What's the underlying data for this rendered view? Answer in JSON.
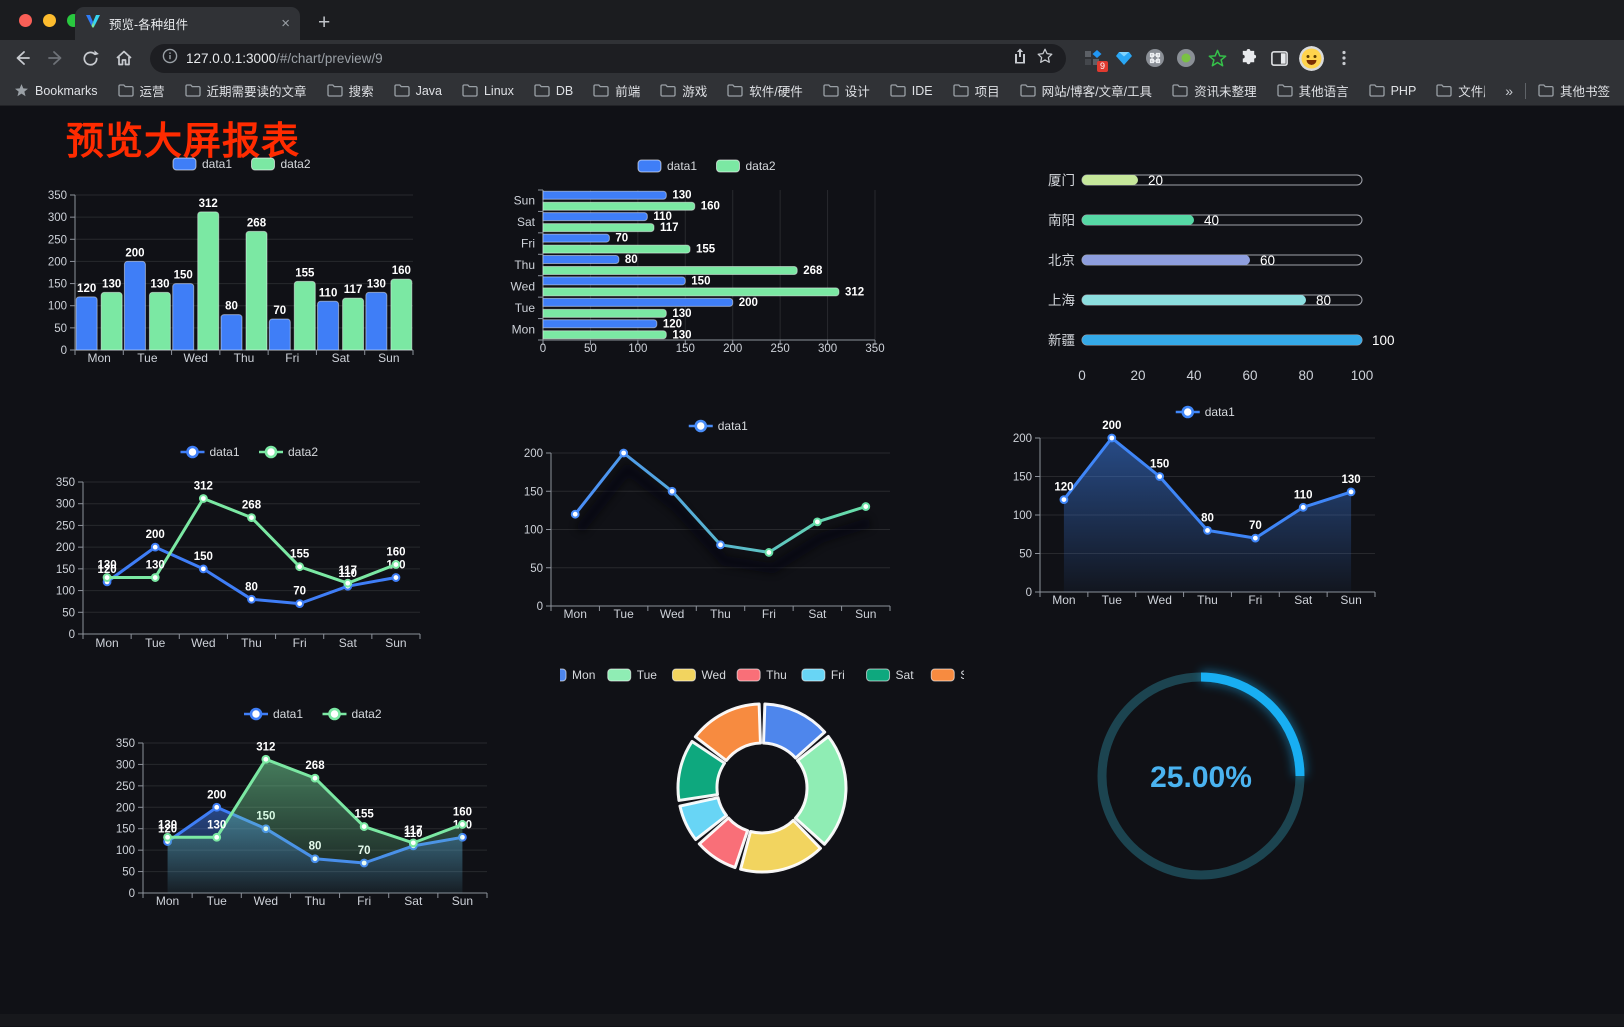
{
  "browser": {
    "tab": {
      "title": "预览-各种组件",
      "close_glyph": "×",
      "new_tab_glyph": "+"
    },
    "address": {
      "host": "127.0.0.1:3000",
      "path": "/#/chart/preview/9"
    },
    "bookmarks_label": "Bookmarks",
    "bookmarks": [
      "运营",
      "近期需要读的文章",
      "搜索",
      "Java",
      "Linux",
      "DB",
      "前端",
      "游戏",
      "软件/硬件",
      "设计",
      "IDE",
      "项目",
      "网站/博客/文章/工具",
      "资讯未整理",
      "其他语言",
      "PHP",
      "文件服务器"
    ],
    "bookmarks_overflow_glyph": "»",
    "other_bookmarks": "其他书签",
    "extension_badge": "9"
  },
  "page": {
    "title": "预览大屏报表",
    "title_color": "#FF2B00",
    "background": "#101116"
  },
  "chart_data": [
    {
      "id": "bar-vertical",
      "type": "bar",
      "categories": [
        "Mon",
        "Tue",
        "Wed",
        "Thu",
        "Fri",
        "Sat",
        "Sun"
      ],
      "series": [
        {
          "name": "data1",
          "color": "#3F7EF7",
          "values": [
            120,
            200,
            150,
            80,
            70,
            110,
            130
          ]
        },
        {
          "name": "data2",
          "color": "#7BE8A3",
          "values": [
            130,
            130,
            312,
            268,
            155,
            117,
            160
          ]
        }
      ],
      "ylim": [
        0,
        350
      ],
      "ytick_step": 50,
      "legend_position": "top",
      "grid": true,
      "value_labels": true
    },
    {
      "id": "bar-horizontal",
      "type": "hbar",
      "categories": [
        "Mon",
        "Tue",
        "Wed",
        "Thu",
        "Fri",
        "Sat",
        "Sun"
      ],
      "categories_order": "bottom-to-top",
      "series": [
        {
          "name": "data1",
          "color": "#3F7EF7",
          "values": [
            120,
            200,
            150,
            80,
            70,
            110,
            130
          ]
        },
        {
          "name": "data2",
          "color": "#7BE8A3",
          "values": [
            130,
            130,
            312,
            268,
            155,
            117,
            160
          ]
        }
      ],
      "xlim": [
        0,
        350
      ],
      "xtick_step": 50,
      "legend_position": "top",
      "grid": true,
      "value_labels": true
    },
    {
      "id": "city-progress",
      "type": "progress",
      "items": [
        {
          "label": "厦门",
          "value": 20,
          "color": "#C6E79B"
        },
        {
          "label": "南阳",
          "value": 40,
          "color": "#56D8A5"
        },
        {
          "label": "北京",
          "value": 60,
          "color": "#8E9EDE"
        },
        {
          "label": "上海",
          "value": 80,
          "color": "#8CDEDF"
        },
        {
          "label": "新疆",
          "value": 100,
          "color": "#35AAE8"
        }
      ],
      "xlim": [
        0,
        100
      ],
      "xticks": [
        0,
        20,
        40,
        60,
        80,
        100
      ],
      "value_labels": true
    },
    {
      "id": "line-two-series",
      "type": "line",
      "categories": [
        "Mon",
        "Tue",
        "Wed",
        "Thu",
        "Fri",
        "Sat",
        "Sun"
      ],
      "series": [
        {
          "name": "data1",
          "color": "#3F7EF7",
          "values": [
            120,
            200,
            150,
            80,
            70,
            110,
            130
          ]
        },
        {
          "name": "data2",
          "color": "#7BE8A3",
          "values": [
            130,
            130,
            312,
            268,
            155,
            117,
            160
          ]
        }
      ],
      "ylim": [
        0,
        350
      ],
      "ytick_step": 50,
      "legend_position": "top",
      "value_labels": true
    },
    {
      "id": "line-gradient",
      "type": "line",
      "categories": [
        "Mon",
        "Tue",
        "Wed",
        "Thu",
        "Fri",
        "Sat",
        "Sun"
      ],
      "series": [
        {
          "name": "data1",
          "color": "#4A8DF8",
          "color_end": "#68E0A7",
          "shadow": true,
          "values": [
            120,
            200,
            150,
            80,
            70,
            110,
            130
          ]
        }
      ],
      "ylim": [
        0,
        200
      ],
      "ytick_step": 50,
      "legend_position": "top",
      "value_labels": false
    },
    {
      "id": "line-area",
      "type": "line",
      "categories": [
        "Mon",
        "Tue",
        "Wed",
        "Thu",
        "Fri",
        "Sat",
        "Sun"
      ],
      "series": [
        {
          "name": "data1",
          "color": "#3F86F8",
          "area": true,
          "values": [
            120,
            200,
            150,
            80,
            70,
            110,
            130
          ]
        }
      ],
      "ylim": [
        0,
        200
      ],
      "ytick_step": 50,
      "legend_position": "top",
      "value_labels": true
    },
    {
      "id": "line-two-area",
      "type": "line",
      "categories": [
        "Mon",
        "Tue",
        "Wed",
        "Thu",
        "Fri",
        "Sat",
        "Sun"
      ],
      "series": [
        {
          "name": "data1",
          "color": "#3F7EF7",
          "area": true,
          "values": [
            120,
            200,
            150,
            80,
            70,
            110,
            130
          ]
        },
        {
          "name": "data2",
          "color": "#7BE8A3",
          "area": true,
          "values": [
            130,
            130,
            312,
            268,
            155,
            117,
            160
          ]
        }
      ],
      "ylim": [
        0,
        350
      ],
      "ytick_step": 50,
      "legend_position": "top",
      "value_labels": true
    },
    {
      "id": "donut-week",
      "type": "donut",
      "items": [
        {
          "label": "Mon",
          "value": 120,
          "color": "#4E86EC"
        },
        {
          "label": "Tue",
          "value": 200,
          "color": "#8FEDB4"
        },
        {
          "label": "Wed",
          "value": 150,
          "color": "#F2D45F"
        },
        {
          "label": "Thu",
          "value": 80,
          "color": "#F96F78"
        },
        {
          "label": "Fri",
          "value": 70,
          "color": "#68D5F5"
        },
        {
          "label": "Sat",
          "value": 110,
          "color": "#0EA87E"
        },
        {
          "label": "Sun",
          "value": 130,
          "color": "#F78B40"
        }
      ],
      "legend_position": "top"
    },
    {
      "id": "gauge-percent",
      "type": "gauge",
      "value": 25,
      "max": 100,
      "display": "25.00%",
      "bar_color": "#18AEF2",
      "track_color": "#1C4450",
      "text_color": "#4AB3F0"
    }
  ]
}
